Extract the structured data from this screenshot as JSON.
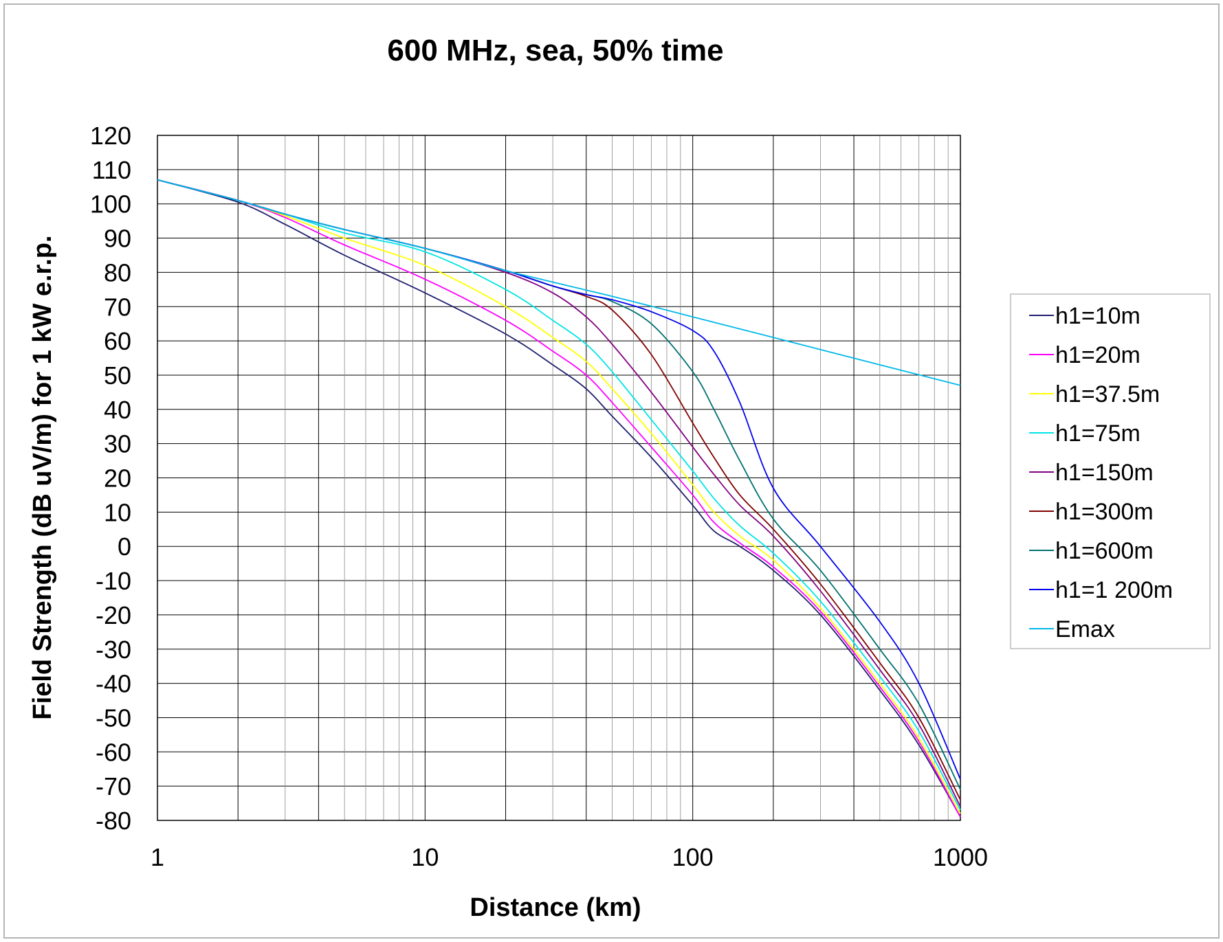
{
  "chart_data": {
    "type": "line",
    "title": "600 MHz, sea, 50% time",
    "xlabel": "Distance (km)",
    "ylabel": "Field Strength (dB uV/m) for 1 kW e.r.p.",
    "xscale": "log",
    "xlim": [
      1,
      1000
    ],
    "ylim": [
      -80,
      120
    ],
    "x_ticks": [
      1,
      10,
      100,
      1000
    ],
    "x_tick_labels": [
      "1",
      "10",
      "100",
      "1000"
    ],
    "y_ticks": [
      120,
      110,
      100,
      90,
      80,
      70,
      60,
      50,
      40,
      30,
      20,
      10,
      0,
      -10,
      -20,
      -30,
      -40,
      -50,
      -60,
      -70,
      -80
    ],
    "y_tick_labels": [
      "120",
      "110",
      "100",
      "90",
      "80",
      "70",
      "60",
      "50",
      "40",
      "30",
      "20",
      "10",
      "0",
      "-10",
      "-20",
      "-30",
      "-40",
      "-50",
      "-60",
      "-70",
      "-80"
    ],
    "grid": true,
    "legend_position": "right",
    "series": [
      {
        "name": "h1=10m",
        "color": "#1f1f6e",
        "x": [
          1,
          2,
          3,
          5,
          10,
          20,
          30,
          40,
          50,
          70,
          100,
          120,
          150,
          200,
          300,
          500,
          700,
          1000
        ],
        "y": [
          107,
          100.5,
          94,
          85,
          74,
          62,
          53,
          46,
          38,
          26,
          12,
          4.5,
          0,
          -7,
          -20,
          -42,
          -58,
          -79
        ]
      },
      {
        "name": "h1=20m",
        "color": "#ff00ff",
        "x": [
          1,
          2,
          3,
          5,
          10,
          20,
          30,
          40,
          50,
          70,
          100,
          120,
          150,
          200,
          300,
          500,
          700,
          1000
        ],
        "y": [
          107,
          101,
          96,
          88,
          78,
          66,
          57,
          50,
          42,
          29,
          15,
          7,
          1,
          -6,
          -19,
          -41,
          -57,
          -79
        ]
      },
      {
        "name": "h1=37.5m",
        "color": "#ffff00",
        "x": [
          1,
          2,
          3,
          5,
          10,
          20,
          30,
          40,
          50,
          70,
          100,
          120,
          150,
          200,
          300,
          500,
          700,
          1000
        ],
        "y": [
          107,
          101,
          96.5,
          90,
          82,
          70,
          61,
          54,
          46,
          33,
          18,
          10,
          3,
          -4,
          -18,
          -40,
          -56,
          -78
        ]
      },
      {
        "name": "h1=75m",
        "color": "#00e5e5",
        "x": [
          1,
          2,
          3,
          5,
          10,
          20,
          30,
          40,
          50,
          70,
          100,
          120,
          150,
          200,
          300,
          500,
          700,
          1000
        ],
        "y": [
          107,
          101,
          97,
          91.5,
          86,
          75,
          66,
          59,
          51,
          37,
          22,
          14,
          6,
          -2,
          -16,
          -38,
          -54,
          -77
        ]
      },
      {
        "name": "h1=150m",
        "color": "#800080",
        "x": [
          1,
          2,
          3,
          5,
          10,
          20,
          30,
          40,
          50,
          70,
          100,
          120,
          150,
          200,
          300,
          500,
          700,
          1000
        ],
        "y": [
          107,
          101,
          97,
          92.5,
          87,
          80,
          74,
          67,
          59,
          45,
          29,
          21,
          12,
          3,
          -13,
          -36,
          -52,
          -76
        ]
      },
      {
        "name": "h1=300m",
        "color": "#800000",
        "x": [
          1,
          2,
          3,
          5,
          10,
          20,
          30,
          40,
          50,
          70,
          100,
          120,
          150,
          200,
          300,
          500,
          700,
          1000
        ],
        "y": [
          107,
          101,
          97,
          92.5,
          87,
          80.5,
          76,
          73,
          69,
          56,
          36,
          26,
          15,
          5,
          -11,
          -34,
          -50,
          -74
        ]
      },
      {
        "name": "h1=600m",
        "color": "#007070",
        "x": [
          1,
          2,
          3,
          5,
          10,
          20,
          30,
          40,
          50,
          70,
          100,
          120,
          150,
          200,
          300,
          500,
          700,
          1000
        ],
        "y": [
          107,
          101,
          97,
          92.5,
          87,
          80.5,
          76,
          73.5,
          71.5,
          65,
          51,
          40,
          25,
          8,
          -7,
          -30,
          -46,
          -71
        ]
      },
      {
        "name": "h1=1 200m",
        "color": "#0000ee",
        "x": [
          1,
          2,
          3,
          5,
          10,
          20,
          30,
          40,
          50,
          70,
          100,
          120,
          150,
          200,
          300,
          500,
          700,
          1000
        ],
        "y": [
          107,
          101,
          97,
          92.5,
          87,
          80.5,
          76,
          73.5,
          72,
          68.5,
          63,
          57,
          42,
          17,
          0,
          -22,
          -40,
          -68
        ]
      },
      {
        "name": "Emax",
        "color": "#00b8e8",
        "x": [
          1,
          2,
          3,
          5,
          10,
          20,
          50,
          100,
          200,
          500,
          1000
        ],
        "y": [
          107,
          101,
          97,
          92.5,
          87,
          80.5,
          73,
          67,
          61,
          53,
          47
        ]
      }
    ]
  }
}
